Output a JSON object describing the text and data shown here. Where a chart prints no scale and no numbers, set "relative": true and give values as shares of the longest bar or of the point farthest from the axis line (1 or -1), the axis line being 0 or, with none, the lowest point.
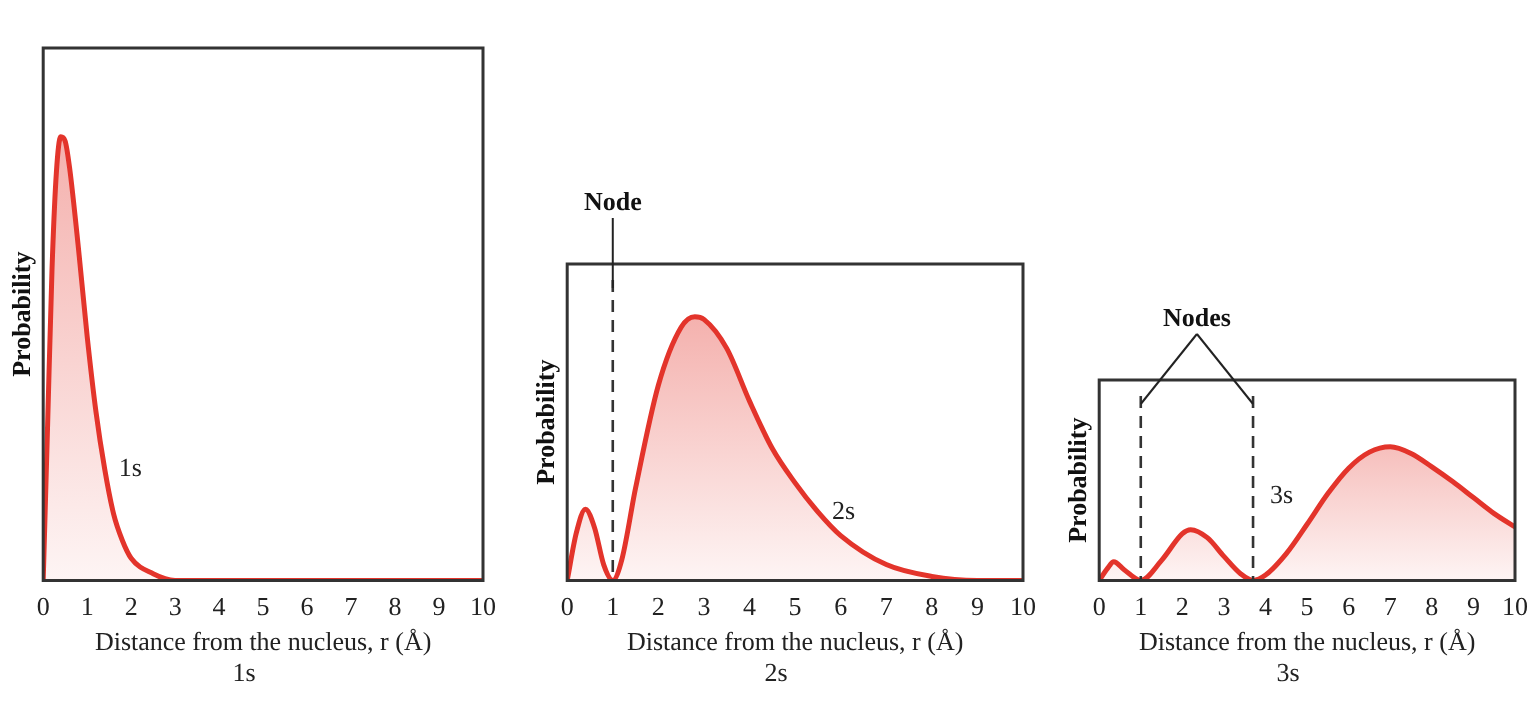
{
  "chart_data": [
    {
      "type": "area",
      "relative": true,
      "ylabel": "Probability",
      "xlabel": "Distance from the nucleus, r (Å)",
      "subtitle": "1s",
      "xlim": [
        0,
        10
      ],
      "xticks": [
        0,
        1,
        2,
        3,
        4,
        5,
        6,
        7,
        8,
        9,
        10
      ],
      "x": [
        0,
        0.1,
        0.2,
        0.3,
        0.4,
        0.5,
        0.6,
        0.8,
        1.0,
        1.2,
        1.4,
        1.6,
        1.8,
        2.0,
        2.5,
        3.0,
        3.5,
        10
      ],
      "series": [
        {
          "name": "1s",
          "color": "#e3342b",
          "values": [
            0,
            0.35,
            0.7,
            0.92,
            1.0,
            0.99,
            0.93,
            0.75,
            0.55,
            0.38,
            0.25,
            0.15,
            0.09,
            0.05,
            0.015,
            0,
            0,
            0
          ]
        }
      ]
    },
    {
      "type": "area",
      "relative": true,
      "ylabel": "Probability",
      "xlabel": "Distance from the nucleus, r (Å)",
      "subtitle": "2s",
      "xlim": [
        0,
        10
      ],
      "xticks": [
        0,
        1,
        2,
        3,
        4,
        5,
        6,
        7,
        8,
        9,
        10
      ],
      "x": [
        0,
        0.2,
        0.4,
        0.6,
        0.8,
        1.0,
        1.2,
        1.5,
        2.0,
        2.5,
        2.8,
        3.0,
        3.5,
        4.0,
        4.5,
        5.0,
        5.5,
        6.0,
        7.0,
        8.0,
        9.0,
        10
      ],
      "series": [
        {
          "name": "2s",
          "color": "#e3342b",
          "values": [
            0,
            0.18,
            0.27,
            0.2,
            0.06,
            0,
            0.08,
            0.35,
            0.74,
            0.96,
            1.0,
            0.99,
            0.88,
            0.68,
            0.5,
            0.37,
            0.26,
            0.17,
            0.06,
            0.015,
            0,
            0
          ]
        }
      ],
      "ref_lines": [
        {
          "axis": "x",
          "value": 1,
          "line_style": "dashed",
          "color": "#333333"
        }
      ],
      "annotations": [
        "Node"
      ]
    },
    {
      "type": "area",
      "relative": true,
      "ylabel": "Probability",
      "xlabel": "Distance from the nucleus, r (Å)",
      "subtitle": "3s",
      "xlim": [
        0,
        10
      ],
      "xticks": [
        0,
        1,
        2,
        3,
        4,
        5,
        6,
        7,
        8,
        9,
        10
      ],
      "x": [
        0,
        0.2,
        0.35,
        0.6,
        1.0,
        1.5,
        2.0,
        2.2,
        2.6,
        3.0,
        3.4,
        3.7,
        4.0,
        4.5,
        5.0,
        5.5,
        6.0,
        6.5,
        7.0,
        7.5,
        8.0,
        8.5,
        9.0,
        9.5,
        10
      ],
      "series": [
        {
          "name": "3s",
          "color": "#e3342b",
          "values": [
            0,
            0.09,
            0.14,
            0.08,
            0,
            0.15,
            0.35,
            0.38,
            0.32,
            0.18,
            0.05,
            0,
            0.04,
            0.2,
            0.42,
            0.65,
            0.84,
            0.96,
            1.0,
            0.95,
            0.85,
            0.74,
            0.62,
            0.5,
            0.4
          ]
        }
      ],
      "ref_lines": [
        {
          "axis": "x",
          "value": 1,
          "line_style": "dashed",
          "color": "#333333"
        },
        {
          "axis": "x",
          "value": 3.7,
          "line_style": "dashed",
          "color": "#333333"
        }
      ],
      "annotations": [
        "Nodes"
      ]
    }
  ]
}
